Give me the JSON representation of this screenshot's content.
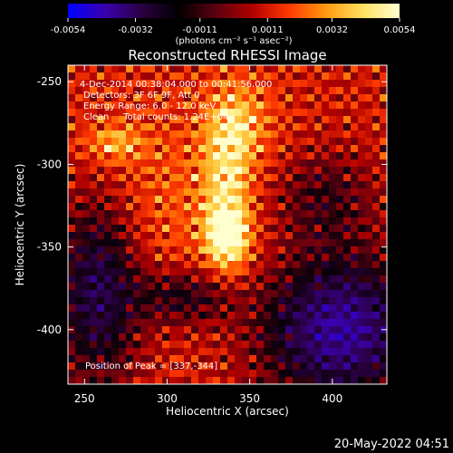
{
  "colorbar": {
    "ticks": [
      "-0.0054",
      "-0.0032",
      "-0.0011",
      "0.0011",
      "0.0032",
      "0.0054"
    ],
    "tick_values": [
      -0.0054,
      -0.0032,
      -0.0011,
      0.0011,
      0.0032,
      0.0054
    ],
    "unit_label": "(photons cm⁻² s⁻¹ asec⁻²)",
    "colors": [
      "#0000ff",
      "#3a00b0",
      "#2a0040",
      "#000000",
      "#5a0010",
      "#b00000",
      "#ff3a00",
      "#ff9a10",
      "#ffe060",
      "#ffffd0"
    ]
  },
  "chart_data": {
    "type": "heatmap",
    "title": "Reconstructed RHESSI Image",
    "xlabel": "Heliocentric X (arcsec)",
    "ylabel": "Heliocentric Y (arcsec)",
    "xlim": [
      240,
      433
    ],
    "ylim": [
      -433,
      -240
    ],
    "x_ticks": [
      "250",
      "300",
      "350",
      "400"
    ],
    "x_tick_values": [
      250,
      300,
      350,
      400
    ],
    "y_ticks": [
      "-250",
      "-300",
      "-350",
      "-400"
    ],
    "y_tick_values": [
      -250,
      -300,
      -350,
      -400
    ],
    "value_range": [
      -0.0054,
      0.0054
    ],
    "peak": [
      337,
      -344
    ],
    "annotations": {
      "time": "4-Dec-2014 00:38:04.000 to 00:41:56.000",
      "detectors": "Detectors: 3F 6F 9F, Att 0",
      "energy": "Energy Range: 6.0 - 12.0 keV",
      "clean": "Clean     Total counts: 1.24E+04",
      "peak_label": "Position of Peak = [337,-344]"
    }
  },
  "footer": {
    "date": "20-May-2022 04:51"
  }
}
